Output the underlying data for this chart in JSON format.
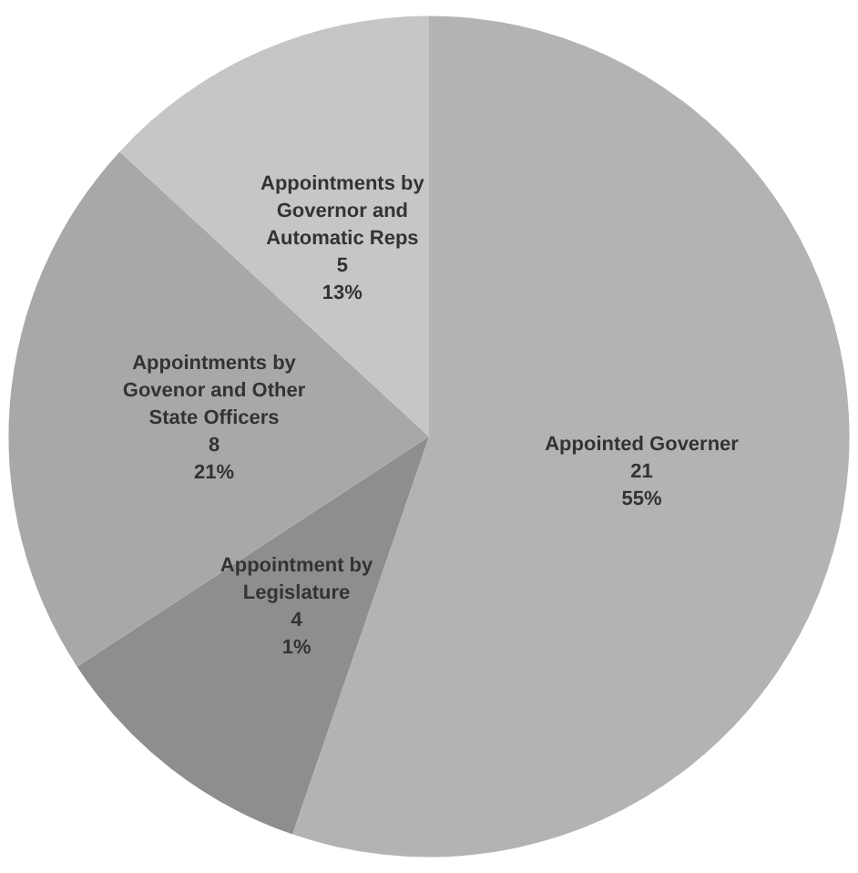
{
  "chart_data": {
    "type": "pie",
    "categories": [
      "Appointed Governer",
      "Appointment by Legislature",
      "Appointments by Govenor and Other State Officers",
      "Appointments by Governor and Automatic Reps"
    ],
    "values": [
      21,
      4,
      8,
      5
    ],
    "value_labels": [
      "21\n55%",
      "4\n1%",
      "8\n21%",
      "5\n13%"
    ],
    "colors": [
      "#b3b3b3",
      "#8e8e8e",
      "#a8a8a8",
      "#c6c6c6"
    ],
    "legend": false
  }
}
